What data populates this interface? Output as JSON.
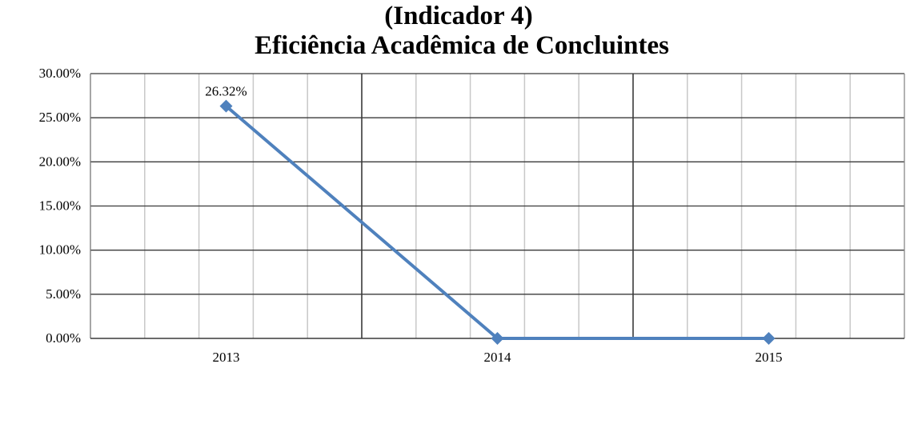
{
  "chart_data": {
    "type": "line",
    "title": [
      "(Indicador 4)",
      "Eficiência Acadêmica de Concluintes"
    ],
    "categories": [
      "2013",
      "2014",
      "2015"
    ],
    "series": [
      {
        "values": [
          26.32,
          0,
          0
        ],
        "color": "#4f81bd"
      }
    ],
    "data_labels": [
      "26.32%",
      "",
      ""
    ],
    "y_ticks": [
      "0.00%",
      "5.00%",
      "10.00%",
      "15.00%",
      "20.00%",
      "25.00%",
      "30.00%"
    ],
    "ylim": [
      0,
      30
    ],
    "grid": true,
    "legend": "none"
  }
}
